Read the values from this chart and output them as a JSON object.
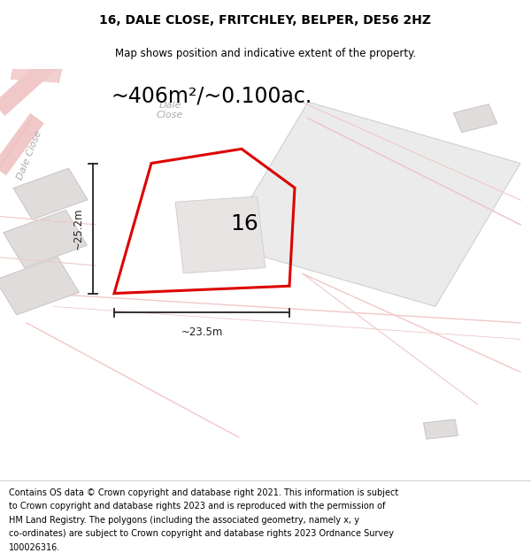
{
  "title": "16, DALE CLOSE, FRITCHLEY, BELPER, DE56 2HZ",
  "subtitle": "Map shows position and indicative extent of the property.",
  "area_text": "~406m²/~0.100ac.",
  "width_label": "~23.5m",
  "height_label": "~25.2m",
  "plot_number": "16",
  "map_bg": "#f8f6f6",
  "road_color": "#f0c8c8",
  "road_outline_color": "#e8b8b8",
  "building_fill": "#e0dcdc",
  "building_edge": "#c8c4c4",
  "large_parcel_fill": "#ebebeb",
  "large_parcel_edge": "#cccccc",
  "red_poly_color": "#dd0000",
  "dim_color": "#222222",
  "label_color": "#aaaaaa",
  "footer_lines": [
    "Contains OS data © Crown copyright and database right 2021. This information is subject",
    "to Crown copyright and database rights 2023 and is reproduced with the permission of",
    "HM Land Registry. The polygons (including the associated geometry, namely x, y",
    "co-ordinates) are subject to Crown copyright and database rights 2023 Ordnance Survey",
    "100026316."
  ],
  "title_fontsize": 10,
  "subtitle_fontsize": 8.5,
  "area_fontsize": 17,
  "label_fontsize": 8.5,
  "footer_fontsize": 7.0,
  "plot_num_fontsize": 18,
  "road_label_fontsize": 8
}
